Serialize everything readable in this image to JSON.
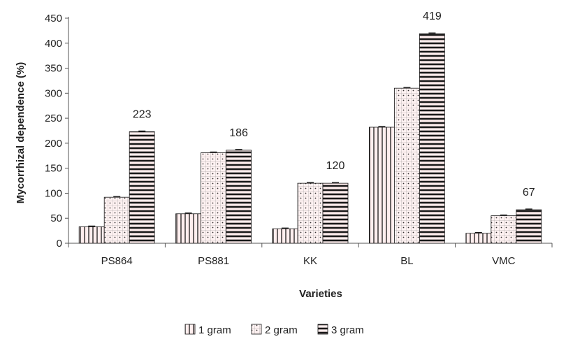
{
  "chart_data": {
    "type": "bar",
    "categories": [
      "PS864",
      "PS881",
      "KK",
      "BL",
      "VMC"
    ],
    "series": [
      {
        "name": "1 gram",
        "values": [
          33,
          59,
          29,
          232,
          20
        ]
      },
      {
        "name": "2 gram",
        "values": [
          92,
          181,
          120,
          310,
          55
        ]
      },
      {
        "name": "3 gram",
        "values": [
          223,
          186,
          120,
          419,
          67
        ]
      }
    ],
    "data_labels": [
      "223",
      "186",
      "120",
      "419",
      "67"
    ],
    "xlabel": "Varieties",
    "ylabel": "Mycorrhizal dependence  (%)",
    "ylim": [
      0,
      450
    ],
    "yticks": [
      0,
      50,
      100,
      150,
      200,
      250,
      300,
      350,
      400,
      450
    ],
    "grid": false,
    "legend_position": "bottom",
    "colors": {
      "bar_fill": "#ffeeee",
      "stripe": "#1a1a1a",
      "axis": "#555555"
    }
  }
}
